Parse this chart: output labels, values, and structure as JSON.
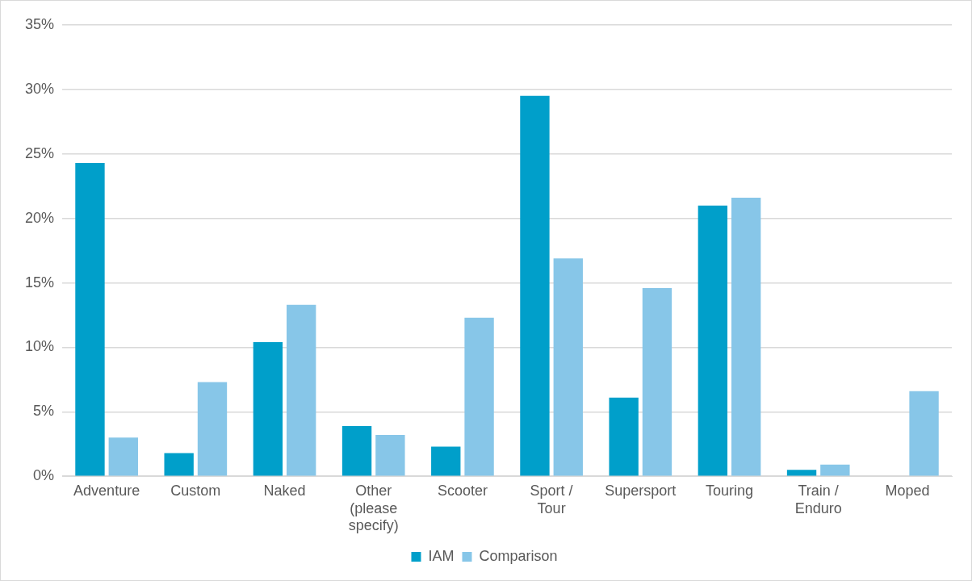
{
  "chart_data": {
    "type": "bar",
    "categories": [
      "Adventure",
      "Custom",
      "Naked",
      "Other (please specify)",
      "Scooter",
      "Sport / Tour",
      "Supersport",
      "Touring",
      "Train / Enduro",
      "Moped"
    ],
    "series": [
      {
        "name": "IAM",
        "color": "#009fca",
        "values": [
          24.3,
          1.8,
          10.4,
          3.9,
          2.3,
          29.5,
          6.1,
          21.0,
          0.5,
          0
        ]
      },
      {
        "name": "Comparison",
        "color": "#87c6e8",
        "values": [
          3.0,
          7.3,
          13.3,
          3.2,
          12.3,
          16.9,
          14.6,
          21.6,
          0.9,
          6.6
        ]
      }
    ],
    "ylim": [
      0,
      35
    ],
    "yticks": [
      {
        "value": 0,
        "label": "0%"
      },
      {
        "value": 5,
        "label": "5%"
      },
      {
        "value": 10,
        "label": "10%"
      },
      {
        "value": 15,
        "label": "15%"
      },
      {
        "value": 20,
        "label": "20%"
      },
      {
        "value": 25,
        "label": "25%"
      },
      {
        "value": 30,
        "label": "30%"
      },
      {
        "value": 35,
        "label": "35%"
      }
    ],
    "grid": "y",
    "legend": "bottom"
  }
}
